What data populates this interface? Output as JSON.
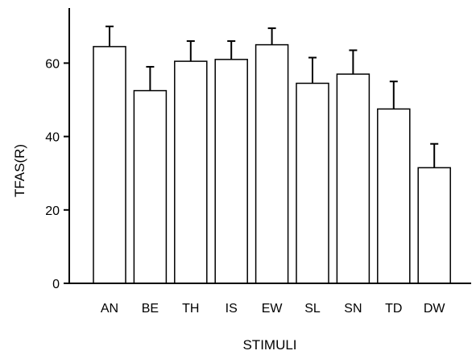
{
  "chart_data": {
    "type": "bar",
    "title": "",
    "xlabel": "STIMULI",
    "ylabel": "TFAS(R)",
    "categories": [
      "AN",
      "BE",
      "TH",
      "IS",
      "EW",
      "SL",
      "SN",
      "TD",
      "DW"
    ],
    "values": [
      64.5,
      52.5,
      60.5,
      61,
      65,
      54.5,
      57,
      47.5,
      31.5
    ],
    "error_plus": [
      5.5,
      6.5,
      5.5,
      5,
      4.5,
      7,
      6.5,
      7.5,
      6.5
    ],
    "ylim": [
      0,
      75
    ],
    "yticks": [
      0,
      20,
      40,
      60
    ],
    "grid": false,
    "legend": "none",
    "colors": {
      "bar_fill": "#ffffff",
      "bar_stroke": "#000000",
      "axis": "#000000"
    }
  }
}
